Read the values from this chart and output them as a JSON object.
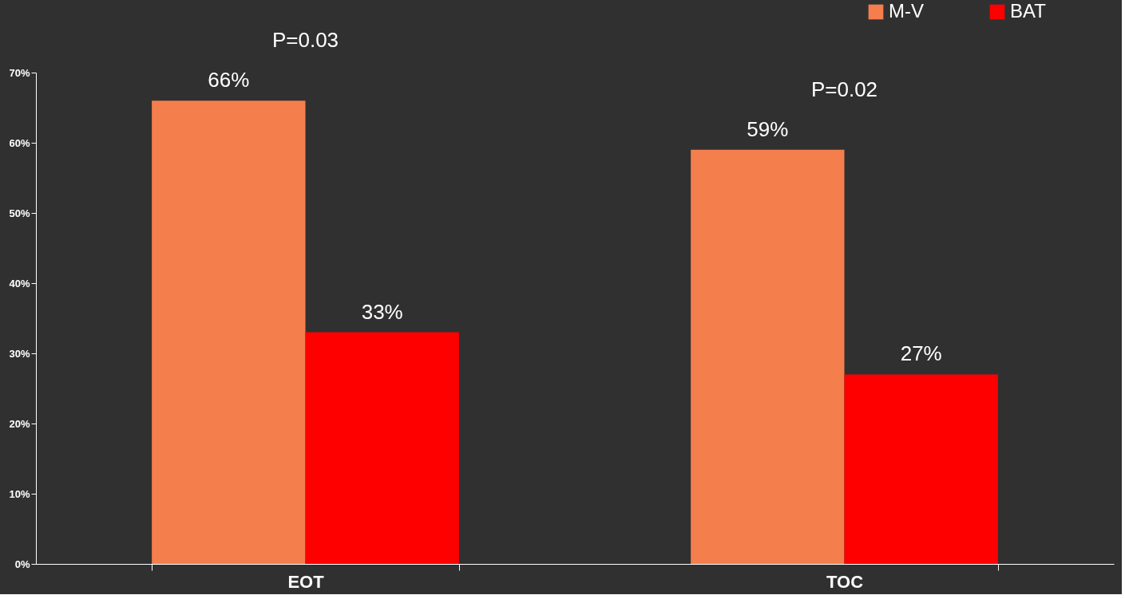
{
  "chart_data": {
    "type": "bar",
    "categories": [
      "EOT",
      "TOC"
    ],
    "series": [
      {
        "name": "M-V",
        "color": "#f47e4c",
        "values": [
          66,
          59
        ],
        "value_labels": [
          "66%",
          "59%"
        ]
      },
      {
        "name": "BAT",
        "color": "#ff0000",
        "values": [
          33,
          27
        ],
        "value_labels": [
          "33%",
          "27%"
        ]
      }
    ],
    "ylim": [
      0,
      70
    ],
    "yticks": [
      {
        "value": 0,
        "label": "0%"
      },
      {
        "value": 10,
        "label": "10%"
      },
      {
        "value": 20,
        "label": "20%"
      },
      {
        "value": 30,
        "label": "30%"
      },
      {
        "value": 40,
        "label": "40%"
      },
      {
        "value": 50,
        "label": "50%"
      },
      {
        "value": 60,
        "label": "60%"
      },
      {
        "value": 70,
        "label": "70%"
      }
    ],
    "annotations": [
      "P=0.03",
      "P=0.02"
    ],
    "legend": "top right",
    "grid": false
  }
}
